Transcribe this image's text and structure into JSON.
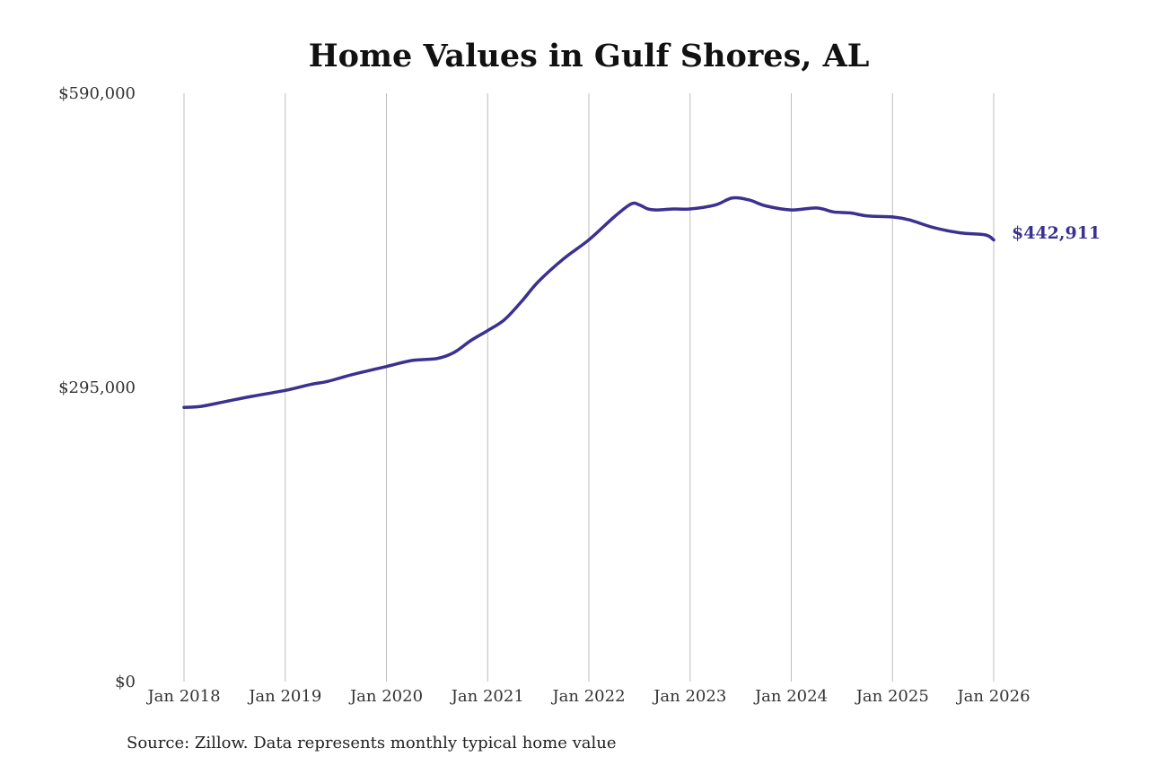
{
  "chart_data": {
    "type": "line",
    "title": "Home Values in Gulf Shores, AL",
    "source": "Source: Zillow. Data represents monthly typical home value",
    "ylim": [
      0,
      590000
    ],
    "y_ticks": [
      {
        "value": 0,
        "label": "$0"
      },
      {
        "value": 295000,
        "label": "$295,000"
      },
      {
        "value": 590000,
        "label": "$590,000"
      }
    ],
    "x_ticks": [
      {
        "value": "2018-01",
        "label": "Jan 2018"
      },
      {
        "value": "2019-01",
        "label": "Jan 2019"
      },
      {
        "value": "2020-01",
        "label": "Jan 2020"
      },
      {
        "value": "2021-01",
        "label": "Jan 2021"
      },
      {
        "value": "2022-01",
        "label": "Jan 2022"
      },
      {
        "value": "2023-01",
        "label": "Jan 2023"
      },
      {
        "value": "2024-01",
        "label": "Jan 2024"
      },
      {
        "value": "2025-01",
        "label": "Jan 2025"
      },
      {
        "value": "2026-01",
        "label": "Jan 2026"
      }
    ],
    "grid": "vertical",
    "legend": "none",
    "color": "#3a3190",
    "end_label": "$442,911",
    "series": [
      {
        "x": [
          "2018-01",
          "2018-03",
          "2018-06",
          "2018-09",
          "2019-01",
          "2019-04",
          "2019-06",
          "2019-09",
          "2020-01",
          "2020-04",
          "2020-07",
          "2020-09",
          "2020-11",
          "2021-01",
          "2021-03",
          "2021-05",
          "2021-07",
          "2021-10",
          "2022-01",
          "2022-04",
          "2022-06",
          "2022-07",
          "2022-08",
          "2022-09",
          "2022-11",
          "2023-01",
          "2023-04",
          "2023-06",
          "2023-08",
          "2023-10",
          "2024-01",
          "2024-04",
          "2024-06",
          "2024-08",
          "2024-10",
          "2025-01",
          "2025-03",
          "2025-06",
          "2025-09",
          "2025-12",
          "2026-01"
        ],
        "values": [
          275000,
          276000,
          281000,
          286000,
          292000,
          298000,
          301000,
          308000,
          316000,
          322000,
          324000,
          330000,
          342000,
          352000,
          363000,
          381000,
          401000,
          424000,
          443000,
          466000,
          479000,
          478000,
          474000,
          473000,
          474000,
          474000,
          478000,
          485000,
          483000,
          477000,
          473000,
          475000,
          471000,
          470000,
          467000,
          466000,
          463000,
          455000,
          450000,
          448000,
          442911
        ]
      }
    ]
  }
}
